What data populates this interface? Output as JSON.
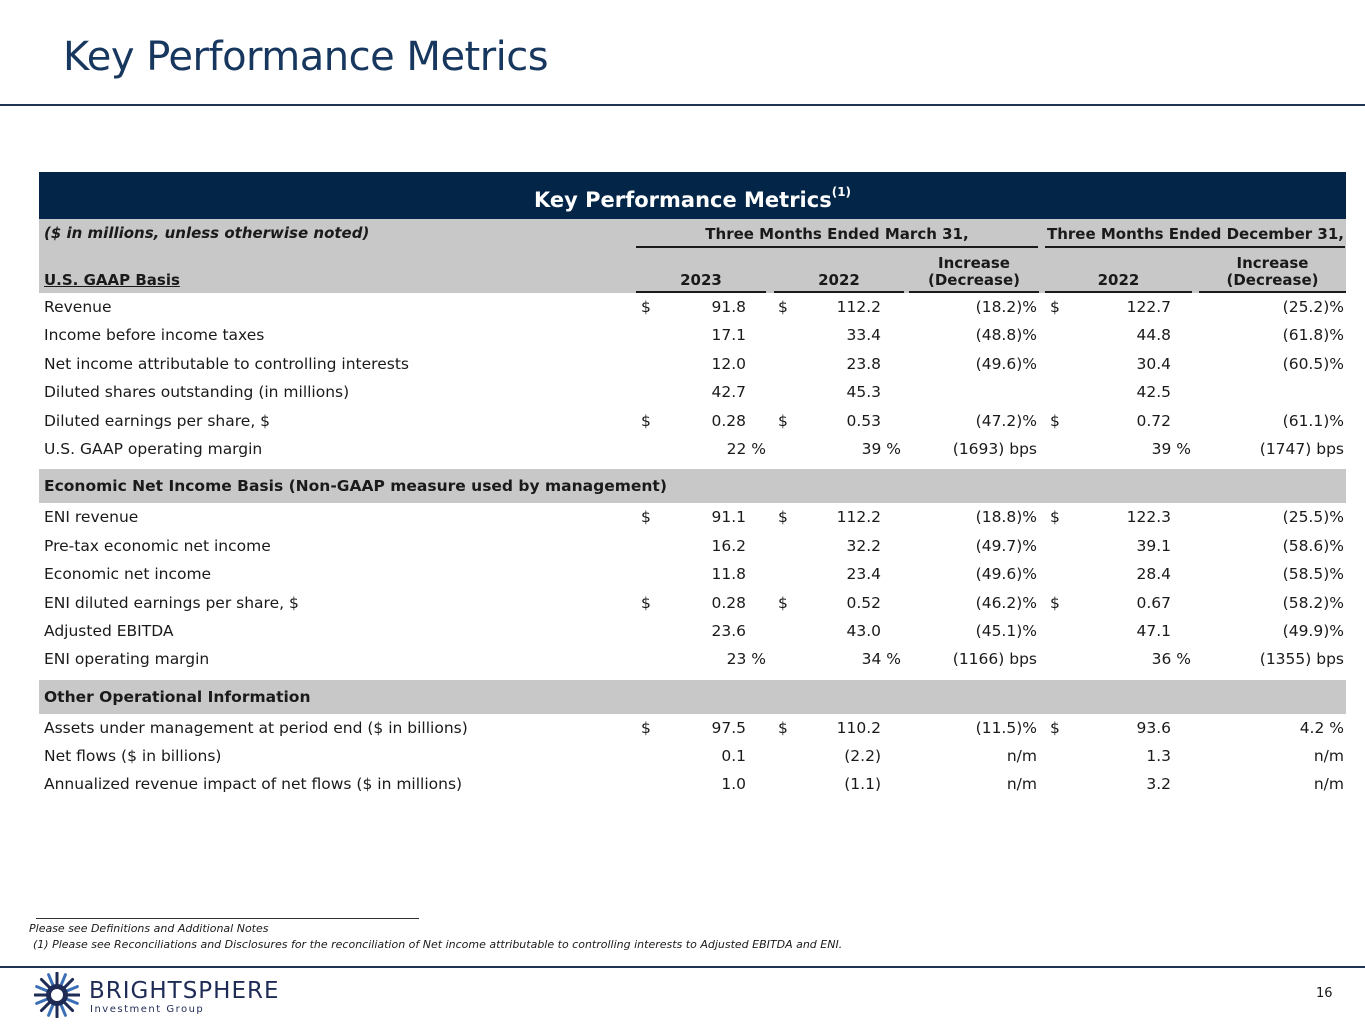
{
  "page": {
    "title": "Key Performance Metrics",
    "page_number": "16"
  },
  "table": {
    "title": "Key Performance Metrics",
    "title_sup": "(1)",
    "note": "($ in millions, unless otherwise noted)",
    "basis_label": "U.S. GAAP Basis",
    "group1": "Three Months Ended March 31,",
    "group2": "Three Months Ended December 31,",
    "col_2023": "2023",
    "col_2022a": "2022",
    "col_incr1_a": "Increase",
    "col_incr1_b": "(Decrease)",
    "col_2022b": "2022",
    "col_incr2_a": "Increase",
    "col_incr2_b": "(Decrease)",
    "gaap_rows": [
      {
        "label": "Revenue",
        "cur": "$",
        "v2023": "91.8",
        "v2022": "112.2",
        "chg1": "(18.2)%",
        "v2022q4": "122.7",
        "chg2": "(25.2)%"
      },
      {
        "label": "Income before income taxes",
        "cur": "",
        "v2023": "17.1",
        "v2022": "33.4",
        "chg1": "(48.8)%",
        "v2022q4": "44.8",
        "chg2": "(61.8)%"
      },
      {
        "label": "Net income attributable to controlling interests",
        "cur": "",
        "v2023": "12.0",
        "v2022": "23.8",
        "chg1": "(49.6)%",
        "v2022q4": "30.4",
        "chg2": "(60.5)%"
      },
      {
        "label": "Diluted shares outstanding (in millions)",
        "cur": "",
        "v2023": "42.7",
        "v2022": "45.3",
        "chg1": "",
        "v2022q4": "42.5",
        "chg2": ""
      },
      {
        "label": "Diluted earnings per share, $",
        "cur": "$",
        "v2023": "0.28",
        "v2022": "0.53",
        "chg1": "(47.2)%",
        "v2022q4": "0.72",
        "chg2": "(61.1)%"
      },
      {
        "label": "U.S. GAAP operating margin",
        "cur": "",
        "v2023": "22 %",
        "v2022": "39 %",
        "chg1": "(1693) bps",
        "v2022q4": "39 %",
        "chg2": "(1747) bps"
      }
    ],
    "eni_section": "Economic Net Income Basis (Non-GAAP measure used by management)",
    "eni_rows": [
      {
        "label": "ENI revenue",
        "cur": "$",
        "v2023": "91.1",
        "v2022": "112.2",
        "chg1": "(18.8)%",
        "v2022q4": "122.3",
        "chg2": "(25.5)%"
      },
      {
        "label": "Pre-tax economic net income",
        "cur": "",
        "v2023": "16.2",
        "v2022": "32.2",
        "chg1": "(49.7)%",
        "v2022q4": "39.1",
        "chg2": "(58.6)%"
      },
      {
        "label": "Economic net income",
        "cur": "",
        "v2023": "11.8",
        "v2022": "23.4",
        "chg1": "(49.6)%",
        "v2022q4": "28.4",
        "chg2": "(58.5)%"
      },
      {
        "label": "ENI diluted earnings per share, $",
        "cur": "$",
        "v2023": "0.28",
        "v2022": "0.52",
        "chg1": "(46.2)%",
        "v2022q4": "0.67",
        "chg2": "(58.2)%"
      },
      {
        "label": "Adjusted EBITDA",
        "cur": "",
        "v2023": "23.6",
        "v2022": "43.0",
        "chg1": "(45.1)%",
        "v2022q4": "47.1",
        "chg2": "(49.9)%"
      },
      {
        "label": "ENI operating margin",
        "cur": "",
        "v2023": "23 %",
        "v2022": "34 %",
        "chg1": "(1166) bps",
        "v2022q4": "36 %",
        "chg2": "(1355) bps"
      }
    ],
    "ops_section": "Other Operational Information",
    "ops_rows": [
      {
        "label": "Assets under management at period end ($ in billions)",
        "cur": "$",
        "v2023": "97.5",
        "v2022": "110.2",
        "chg1": "(11.5)%",
        "v2022q4": "93.6",
        "chg2": "4.2 %"
      },
      {
        "label": "Net flows ($ in billions)",
        "cur": "",
        "v2023": "0.1",
        "v2022": "(2.2)",
        "chg1": "n/m",
        "v2022q4": "1.3",
        "chg2": "n/m"
      },
      {
        "label": "Annualized revenue impact of net flows ($ in millions)",
        "cur": "",
        "v2023": "1.0",
        "v2022": "(1.1)",
        "chg1": "n/m",
        "v2022q4": "3.2",
        "chg2": "n/m"
      }
    ]
  },
  "footnotes": {
    "line1": "Please see Definitions and Additional Notes",
    "line2": "(1)   Please see Reconciliations and Disclosures for the reconciliation of Net income attributable to controlling interests to Adjusted EBITDA and ENI."
  },
  "logo": {
    "name": "BRIGHTSPHERE",
    "sub": "Investment Group",
    "icon": "brightsphere-logo-icon",
    "color": "#1e2b55"
  },
  "colors": {
    "title": "#17375e",
    "header_band": "#022548",
    "section_band": "#c7c8c7"
  }
}
